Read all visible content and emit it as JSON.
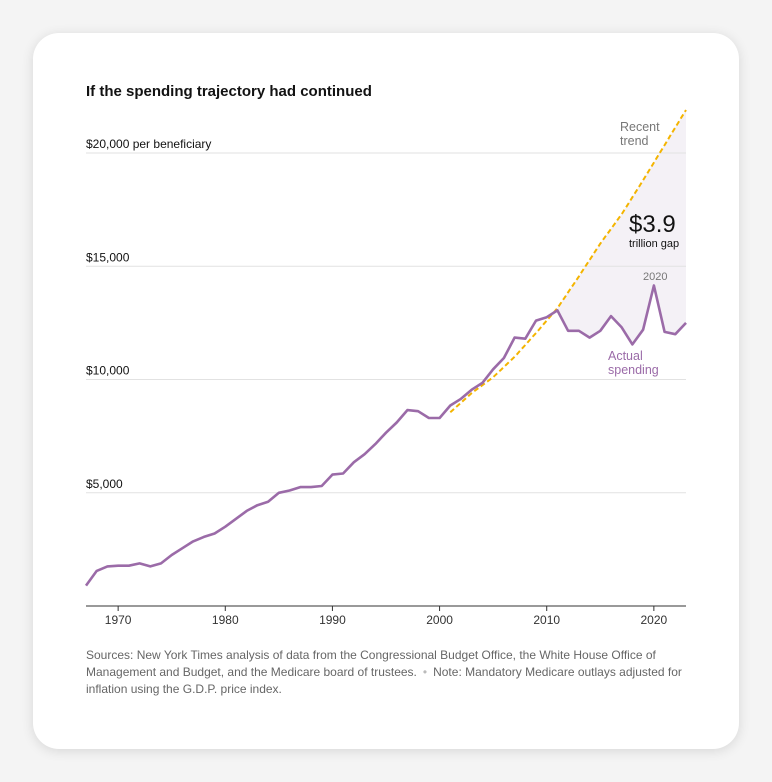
{
  "title": "If the spending trajectory had continued",
  "chart_data": {
    "type": "line",
    "title": "If the spending trajectory had continued",
    "ylabel": "$20,000 per beneficiary",
    "xlim": [
      1967,
      2023
    ],
    "ylim": [
      0,
      20000
    ],
    "y_ticks": [
      {
        "value": 20000,
        "label": "$20,000 per beneficiary"
      },
      {
        "value": 15000,
        "label": "$15,000"
      },
      {
        "value": 10000,
        "label": "$10,000"
      },
      {
        "value": 5000,
        "label": "$5,000"
      }
    ],
    "x_ticks": [
      1970,
      1980,
      1990,
      2000,
      2010,
      2020
    ],
    "series": [
      {
        "name": "Actual spending",
        "color": "#9b6ba8",
        "x": [
          1967,
          1968,
          1969,
          1970,
          1971,
          1972,
          1973,
          1974,
          1975,
          1976,
          1977,
          1978,
          1979,
          1980,
          1981,
          1982,
          1983,
          1984,
          1985,
          1986,
          1987,
          1988,
          1989,
          1990,
          1991,
          1992,
          1993,
          1994,
          1995,
          1996,
          1997,
          1998,
          1999,
          2000,
          2001,
          2002,
          2003,
          2004,
          2005,
          2006,
          2007,
          2008,
          2009,
          2010,
          2011,
          2012,
          2013,
          2014,
          2015,
          2016,
          2017,
          2018,
          2019,
          2020,
          2021,
          2022,
          2023
        ],
        "y": [
          900,
          1550,
          1750,
          1780,
          1780,
          1880,
          1750,
          1880,
          2250,
          2550,
          2850,
          3050,
          3200,
          3500,
          3850,
          4200,
          4450,
          4600,
          5000,
          5100,
          5250,
          5250,
          5300,
          5800,
          5850,
          6350,
          6700,
          7150,
          7650,
          8100,
          8650,
          8600,
          8300,
          8300,
          8850,
          9150,
          9550,
          9850,
          10450,
          10950,
          11850,
          11800,
          12600,
          12750,
          13050,
          12150,
          12150,
          11850,
          12150,
          12800,
          12300,
          11550,
          12200,
          14150,
          12100,
          12000,
          12500
        ]
      },
      {
        "name": "Recent trend",
        "color": "#f4b400",
        "dashed": true,
        "x": [
          2001,
          2003,
          2005,
          2007,
          2009,
          2011,
          2013,
          2015,
          2017,
          2019,
          2021,
          2023
        ],
        "y": [
          8550,
          9400,
          10100,
          11000,
          12050,
          13150,
          14550,
          16000,
          17300,
          18800,
          20350,
          21900
        ]
      }
    ],
    "annotations": {
      "trend_label": [
        "Recent",
        "trend"
      ],
      "actual_label": [
        "Actual",
        "spending"
      ],
      "gap_value": "$3.9",
      "gap_text": "trillion gap",
      "peak_year": "2020"
    },
    "gap_fill_color": "#f4f1f6"
  },
  "source_text": "Sources: New York Times analysis of data from the Congressional Budget Office, the White House Office of Management and Budget, and the Medicare board of trustees.",
  "note_separator": "•",
  "note_text": "Note: Mandatory Medicare outlays adjusted for inflation using the G.D.P. price index."
}
